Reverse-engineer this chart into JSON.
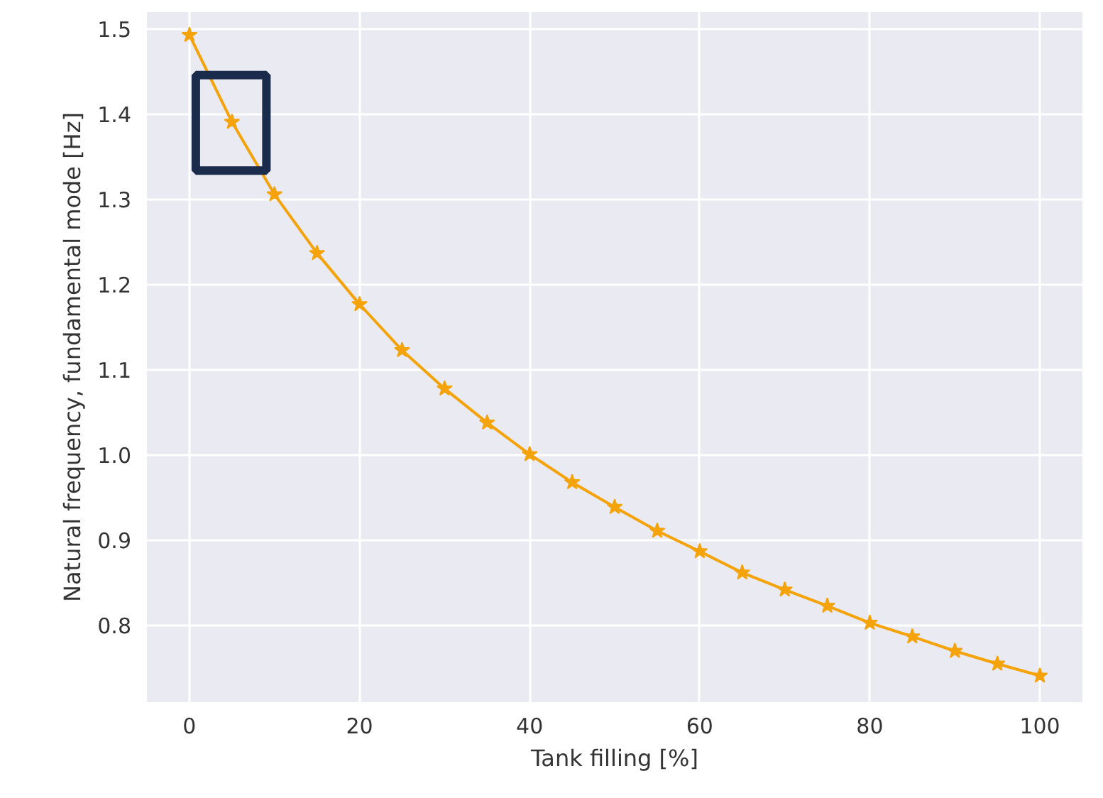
{
  "chart_data": {
    "type": "line",
    "xlabel": "Tank filling [%]",
    "ylabel": "Natural frequency, fundamental mode [Hz]",
    "x": [
      0,
      5,
      10,
      15,
      20,
      25,
      30,
      35,
      40,
      45,
      50,
      55,
      60,
      65,
      70,
      75,
      80,
      85,
      90,
      95,
      100
    ],
    "series": [
      {
        "color": "#f5a30a",
        "values": [
          1.493,
          1.391,
          1.306,
          1.237,
          1.177,
          1.123,
          1.078,
          1.038,
          1.001,
          0.968,
          0.939,
          0.911,
          0.887,
          0.862,
          0.842,
          0.823,
          0.803,
          0.787,
          0.77,
          0.755,
          0.741
        ]
      }
    ],
    "xlim": [
      -5,
      105
    ],
    "ylim": [
      0.71,
      1.52
    ],
    "xticks": [
      0,
      20,
      40,
      60,
      80,
      100
    ],
    "yticks": [
      {
        "value": 0.8,
        "label": "0.8"
      },
      {
        "value": 0.9,
        "label": "0.9"
      },
      {
        "value": 1.0,
        "label": "1.0"
      },
      {
        "value": 1.1,
        "label": "1.1"
      },
      {
        "value": 1.2,
        "label": "1.2"
      },
      {
        "value": 1.3,
        "label": "1.3"
      },
      {
        "value": 1.4,
        "label": "1.4"
      },
      {
        "value": 1.5,
        "label": "1.5"
      }
    ],
    "grid": true,
    "marker": "star",
    "line_style": "solid"
  }
}
